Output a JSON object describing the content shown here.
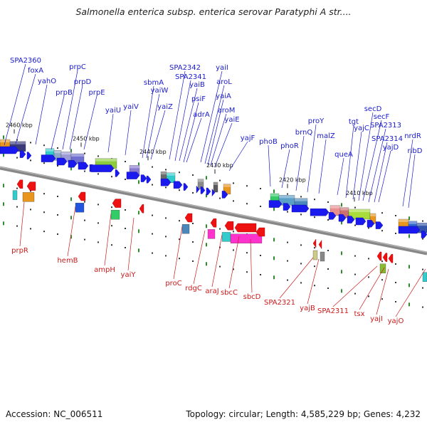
{
  "title": "Salmonella enterica subsp. enterica serovar Paratyphi A str....",
  "accession": "Accession: NC_006511",
  "topology_summary": "Topology: circular; Length: 4,585,229 bp; Genes: 4,232",
  "scale_labels": [
    "2460 kbp",
    "2450 kbp",
    "2440 kbp",
    "2430 kbp",
    "2420 kbp",
    "2410 kbp"
  ],
  "forward_genes": [
    "SPA2360",
    "foxA",
    "yahO",
    "prpB",
    "prpC",
    "prpD",
    "prpE",
    "yaiU",
    "yaiV",
    "sbmA",
    "yaiW",
    "yaiZ",
    "SPA2342",
    "SPA2341",
    "yaiB",
    "psiF",
    "adrA",
    "yaiI",
    "aroL",
    "yaiA",
    "aroM",
    "yaiE",
    "yajF",
    "phoB",
    "phoR",
    "brnQ",
    "proY",
    "malZ",
    "queA",
    "tgt",
    "yajC",
    "secD",
    "secF",
    "SPA2313",
    "SPA2314",
    "yajD",
    "nrdR",
    "ribD"
  ],
  "reverse_genes": [
    "prpR",
    "hemB",
    "ampH",
    "yaiY",
    "proC",
    "rdgC",
    "araJ",
    "sbcC",
    "sbcD",
    "SPA2321",
    "yajB",
    "SPA2311",
    "tsx",
    "yajI",
    "yajO"
  ],
  "colors": {
    "forward_label": "#1a1acc",
    "reverse_label": "#cc1a1a",
    "backbone": "#888888",
    "tick_mark": "#2e8b2e"
  }
}
